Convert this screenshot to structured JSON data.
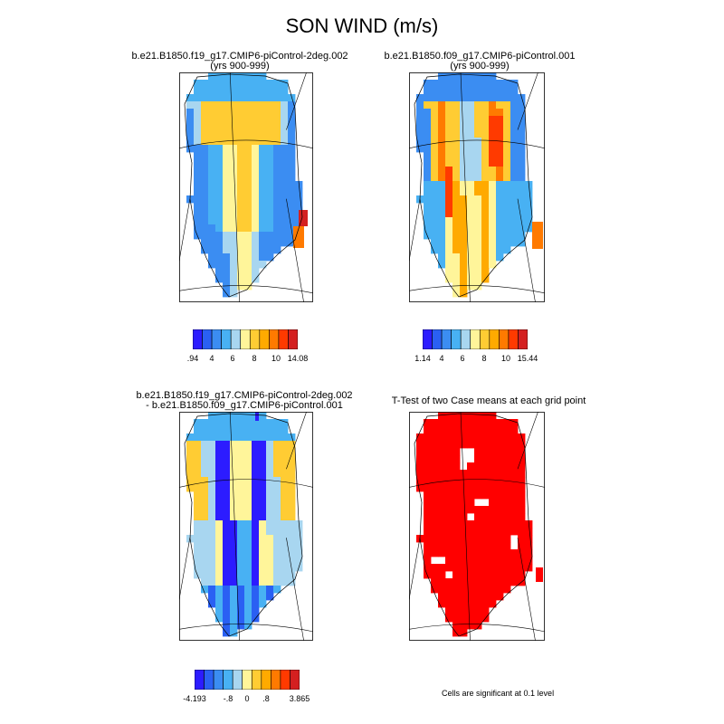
{
  "figure": {
    "title": "SON WIND (m/s)"
  },
  "palettes": {
    "speed": [
      "#2c1cff",
      "#2a60f3",
      "#3b8df2",
      "#48b1f3",
      "#a8d6f0",
      "#fff59a",
      "#ffcc33",
      "#ffaa00",
      "#ff7a00",
      "#ff3a00",
      "#d42020"
    ],
    "diff": [
      "#2c1cff",
      "#2a60f3",
      "#3b8df2",
      "#48b1f3",
      "#a8d6f0",
      "#fff59a",
      "#ffcc33",
      "#ffaa00",
      "#ff7a00",
      "#ff3a00",
      "#d42020"
    ],
    "sig": "#ff0000"
  },
  "panels": [
    {
      "id": "p1",
      "title_line1": "b.e21.B1850.f19_g17.CMIP6-piControl-2deg.002",
      "title_line2": "(yrs 900-999)",
      "colorbar": {
        "labels": [
          ".94",
          "4",
          "6",
          "8",
          "10",
          "14.08"
        ]
      }
    },
    {
      "id": "p2",
      "title_line1": "b.e21.B1850.f09_g17.CMIP6-piControl.001",
      "title_line2": "(yrs 900-999)",
      "colorbar": {
        "labels": [
          "1.14",
          "4",
          "6",
          "8",
          "10",
          "15.44"
        ]
      }
    },
    {
      "id": "p3",
      "title_line1": "b.e21.B1850.f19_g17.CMIP6-piControl-2deg.002",
      "title_line2": "- b.e21.B1850.f09_g17.CMIP6-piControl.001",
      "colorbar": {
        "labels": [
          "-4.193",
          "-.8",
          "0",
          ".8",
          "3.865"
        ]
      }
    },
    {
      "id": "p4",
      "title_line1": "T-Test of two Case means at each grid point",
      "note": "Cells are significant at 0.1 level"
    }
  ]
}
